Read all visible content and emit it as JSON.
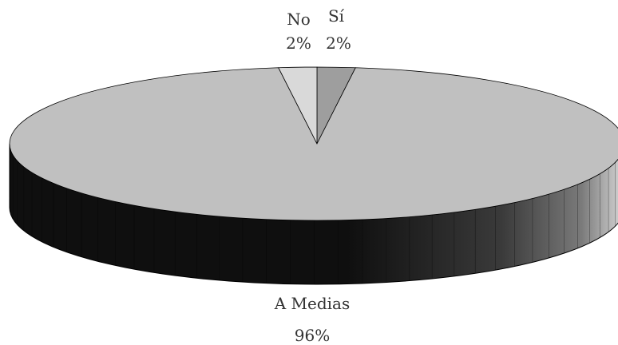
{
  "chart_data": {
    "type": "pie",
    "style": "3d",
    "slices": [
      {
        "label": "Sí",
        "value": 2,
        "display": "2%",
        "color": "#9e9e9e"
      },
      {
        "label": "A Medias",
        "value": 96,
        "display": "96%",
        "color": "#c0c0c0"
      },
      {
        "label": "No",
        "value": 2,
        "display": "2%",
        "color": "#d9d9d9"
      }
    ],
    "side_colors": {
      "dark": "#0f0f0f",
      "light": "#d8d8d8",
      "edge": "#000000"
    }
  }
}
